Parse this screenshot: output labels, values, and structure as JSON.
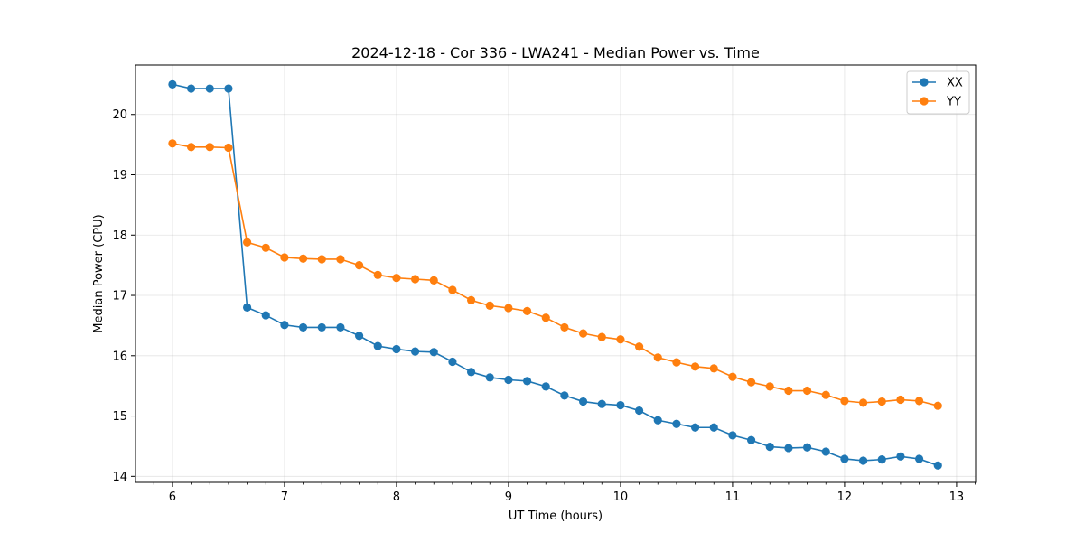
{
  "chart_data": {
    "type": "line",
    "title": "2024-12-18 - Cor 336 - LWA241 - Median Power vs. Time",
    "xlabel": "UT Time (hours)",
    "ylabel": "Median Power (CPU)",
    "xlim": [
      5.67,
      13.17
    ],
    "ylim": [
      13.9,
      20.82
    ],
    "xticks": [
      6,
      7,
      8,
      9,
      10,
      11,
      12,
      13
    ],
    "yticks": [
      14,
      15,
      16,
      17,
      18,
      19,
      20
    ],
    "grid": true,
    "legend_position": "top-right",
    "x": [
      6.0,
      6.1667,
      6.3333,
      6.5,
      6.6667,
      6.8333,
      7.0,
      7.1667,
      7.3333,
      7.5,
      7.6667,
      7.8333,
      8.0,
      8.1667,
      8.3333,
      8.5,
      8.6667,
      8.8333,
      9.0,
      9.1667,
      9.3333,
      9.5,
      9.6667,
      9.8333,
      10.0,
      10.1667,
      10.3333,
      10.5,
      10.6667,
      10.8333,
      11.0,
      11.1667,
      11.3333,
      11.5,
      11.6667,
      11.8333,
      12.0,
      12.1667,
      12.3333,
      12.5,
      12.6667,
      12.8333
    ],
    "series": [
      {
        "name": "XX",
        "color": "#1f77b4",
        "values": [
          20.5,
          20.43,
          20.43,
          20.43,
          16.8,
          16.67,
          16.51,
          16.47,
          16.47,
          16.47,
          16.33,
          16.16,
          16.11,
          16.07,
          16.06,
          15.9,
          15.73,
          15.64,
          15.6,
          15.58,
          15.49,
          15.34,
          15.24,
          15.2,
          15.18,
          15.09,
          14.93,
          14.87,
          14.81,
          14.81,
          14.68,
          14.6,
          14.49,
          14.47,
          14.48,
          14.41,
          14.29,
          14.26,
          14.28,
          14.33,
          14.29,
          14.18
        ]
      },
      {
        "name": "YY",
        "color": "#ff7f0e",
        "values": [
          19.52,
          19.46,
          19.46,
          19.45,
          17.88,
          17.79,
          17.63,
          17.61,
          17.6,
          17.6,
          17.5,
          17.34,
          17.29,
          17.27,
          17.25,
          17.09,
          16.92,
          16.83,
          16.79,
          16.74,
          16.63,
          16.47,
          16.37,
          16.31,
          16.27,
          16.15,
          15.97,
          15.89,
          15.82,
          15.79,
          15.65,
          15.56,
          15.49,
          15.42,
          15.42,
          15.35,
          15.25,
          15.22,
          15.24,
          15.27,
          15.25,
          15.17
        ]
      }
    ]
  }
}
